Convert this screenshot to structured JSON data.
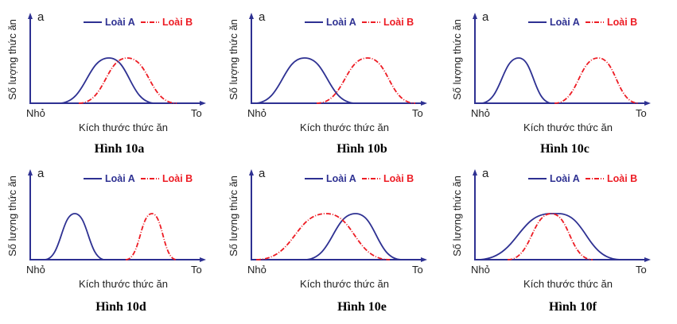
{
  "common": {
    "y_axis_label": "Số lượng thức ăn",
    "x_axis_label": "Kích thước thức ăn",
    "x_min_label": "Nhỏ",
    "x_max_label": "To",
    "corner_label": "a",
    "legend_a": "Loài A",
    "legend_b": "Loài B"
  },
  "colors": {
    "species_a": "#2e3192",
    "species_b": "#ed1c24",
    "axis": "#2e3192"
  },
  "panels": [
    {
      "caption": "Hình 10a"
    },
    {
      "caption": "Hình 10b"
    },
    {
      "caption": "Hình 10c"
    },
    {
      "caption": "Hình 10d"
    },
    {
      "caption": "Hình 10e"
    },
    {
      "caption": "Hình 10f"
    }
  ]
}
